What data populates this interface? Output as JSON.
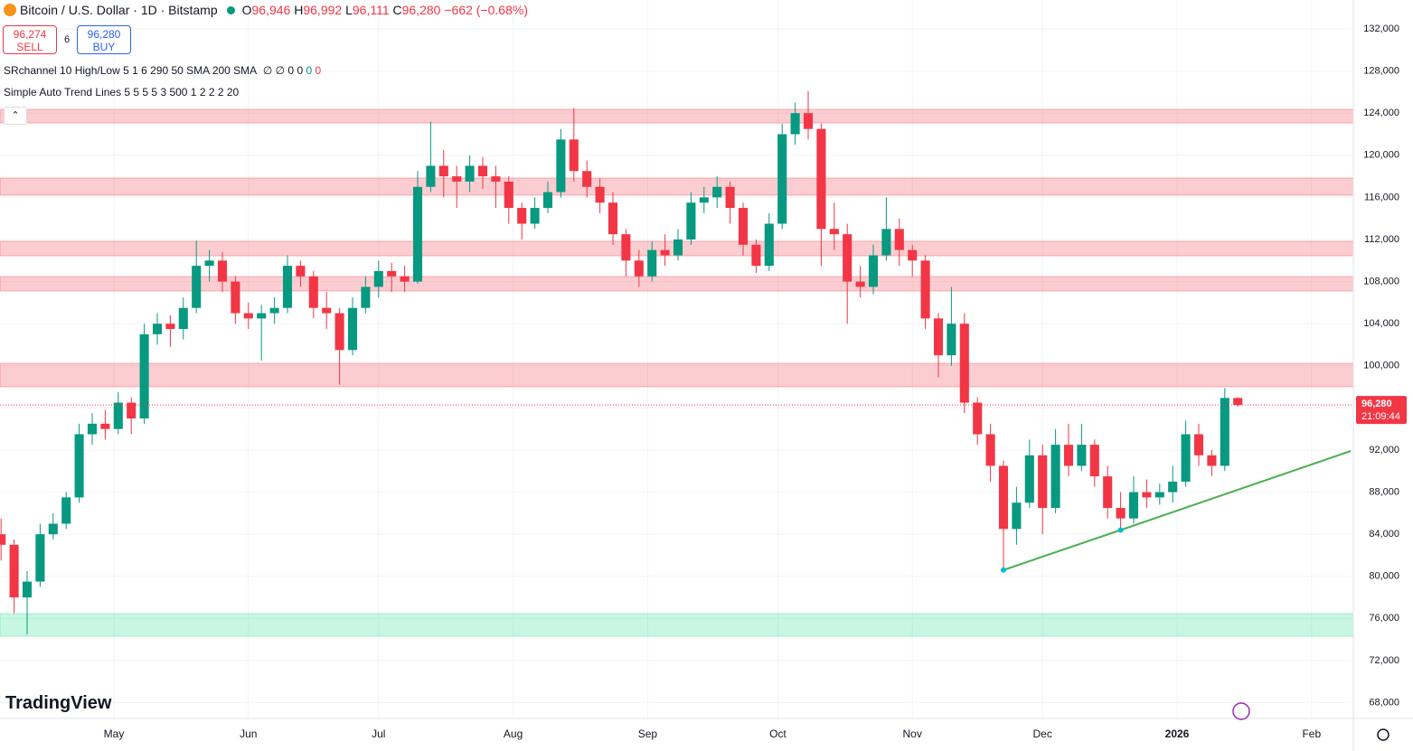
{
  "header": {
    "symbol": "Bitcoin / U.S. Dollar · 1D · Bitstamp",
    "o_label": "O",
    "o": "96,946",
    "h_label": "H",
    "h": "96,992",
    "l_label": "L",
    "l": "96,111",
    "c_label": "C",
    "c": "96,280",
    "change": "−662 (−0.68%)",
    "sell_price": "96,274",
    "sell": "SELL",
    "spread": "6",
    "buy_price": "96,280",
    "buy": "BUY"
  },
  "indicators": [
    {
      "name": "SRchannel 10 High/Low 5 1 6 290 50 SMA 200 SMA",
      "values": "∅ ∅ 0 0",
      "green": "0",
      "red": "0"
    },
    {
      "name": "Simple Auto Trend Lines 5 5 5 5 3 500 1 2 2 2 20"
    }
  ],
  "logo": "TradingView",
  "chart_data": {
    "type": "candlestick",
    "up_color": "#089981",
    "down_color": "#f23645",
    "xlim": [
      -0.25,
      311.625
    ],
    "ylim": [
      66500,
      134750
    ],
    "xticks": [
      {
        "value": 26,
        "label": "May"
      },
      {
        "value": 57,
        "label": "Jun"
      },
      {
        "value": 87,
        "label": "Jul"
      },
      {
        "value": 118,
        "label": "Aug"
      },
      {
        "value": 149,
        "label": "Sep"
      },
      {
        "value": 179,
        "label": "Oct"
      },
      {
        "value": 210,
        "label": "Nov"
      },
      {
        "value": 240,
        "label": "Dec"
      },
      {
        "value": 271,
        "label": "2026"
      },
      {
        "value": 302,
        "label": "Feb"
      }
    ],
    "yticks": [
      {
        "value": 132000,
        "label": "132,000"
      },
      {
        "value": 128000,
        "label": "128,000"
      },
      {
        "value": 124000,
        "label": "124,000"
      },
      {
        "value": 120000,
        "label": "120,000"
      },
      {
        "value": 116000,
        "label": "116,000"
      },
      {
        "value": 112000,
        "label": "112,000"
      },
      {
        "value": 108000,
        "label": "108,000"
      },
      {
        "value": 104000,
        "label": "104,000"
      },
      {
        "value": 100000,
        "label": "100,000"
      },
      {
        "value": 96000,
        "label": "96,000"
      },
      {
        "value": 92000,
        "label": "92,000"
      },
      {
        "value": 88000,
        "label": "88,000"
      },
      {
        "value": 84000,
        "label": "84,000"
      },
      {
        "value": 80000,
        "label": "80,000"
      },
      {
        "value": 76000,
        "label": "76,000"
      },
      {
        "value": 72000,
        "label": "72,000"
      },
      {
        "value": 68000,
        "label": "68,000"
      }
    ],
    "grid": true,
    "x": [
      0,
      3,
      6,
      9,
      12,
      15,
      18,
      21,
      24,
      27,
      30,
      33,
      36,
      39,
      42,
      45,
      48,
      51,
      54,
      57,
      60,
      63,
      66,
      69,
      72,
      75,
      78,
      81,
      84,
      87,
      90,
      93,
      96,
      99,
      102,
      105,
      108,
      111,
      114,
      117,
      120,
      123,
      126,
      129,
      132,
      135,
      138,
      141,
      144,
      147,
      150,
      153,
      156,
      159,
      162,
      165,
      168,
      171,
      174,
      177,
      180,
      183,
      186,
      189,
      192,
      195,
      198,
      201,
      204,
      207,
      210,
      213,
      216,
      219,
      222,
      225,
      228,
      231,
      234,
      237,
      240,
      243,
      246,
      249,
      252,
      255,
      258,
      261,
      264,
      267,
      270,
      273,
      276,
      279,
      282,
      285
    ],
    "open": [
      84000,
      83000,
      78000,
      79500,
      84000,
      85000,
      87500,
      93500,
      94500,
      94000,
      96500,
      95000,
      103000,
      104000,
      103500,
      105500,
      109500,
      110000,
      108000,
      105000,
      104500,
      105000,
      105500,
      109500,
      108500,
      105500,
      105000,
      101500,
      105500,
      107500,
      109000,
      108500,
      108000,
      117000,
      119000,
      118000,
      117500,
      119000,
      118000,
      117500,
      115000,
      113500,
      115000,
      116500,
      121500,
      118500,
      117000,
      115500,
      112500,
      110000,
      108500,
      111000,
      110500,
      112000,
      115500,
      116000,
      117000,
      115000,
      111500,
      109500,
      113500,
      122000,
      124000,
      122500,
      113000,
      112500,
      108000,
      107500,
      110500,
      113000,
      111000,
      110000,
      104500,
      101000,
      104000,
      96500,
      93500,
      90500,
      84500,
      87000,
      91500,
      86500,
      92500,
      90500,
      92500,
      89500,
      86500,
      85500,
      88000,
      87500,
      88000,
      89000,
      93500,
      91500,
      90500,
      96946
    ],
    "high": [
      85500,
      83500,
      80500,
      85000,
      86000,
      88000,
      94500,
      95500,
      95800,
      97500,
      97000,
      104000,
      105000,
      104800,
      106500,
      111900,
      111000,
      110800,
      108500,
      106000,
      105800,
      106500,
      110500,
      110000,
      109000,
      107000,
      105500,
      106500,
      108500,
      110000,
      109800,
      109500,
      118500,
      123200,
      120500,
      119000,
      120000,
      119800,
      119000,
      118000,
      115500,
      116000,
      117500,
      122500,
      124500,
      119500,
      117800,
      116500,
      113000,
      111000,
      111800,
      112500,
      113000,
      116500,
      117000,
      118000,
      117500,
      115500,
      112000,
      114500,
      123000,
      125000,
      126100,
      123000,
      115500,
      113500,
      109500,
      111500,
      116000,
      114000,
      111500,
      110500,
      105000,
      107500,
      105000,
      97000,
      94500,
      91000,
      88500,
      93000,
      92500,
      94000,
      94500,
      94500,
      93000,
      90500,
      88000,
      89500,
      89200,
      88800,
      90500,
      94800,
      94500,
      92000,
      97900,
      96992
    ],
    "low": [
      81500,
      76500,
      74500,
      79000,
      83500,
      84500,
      87000,
      92500,
      93000,
      93500,
      93500,
      94500,
      102000,
      101800,
      102500,
      105000,
      108000,
      107000,
      104000,
      103500,
      100500,
      104000,
      105000,
      107500,
      104500,
      103500,
      98200,
      101000,
      105000,
      106500,
      107000,
      107000,
      107800,
      116500,
      116000,
      115000,
      116500,
      116800,
      115000,
      113500,
      112000,
      113000,
      114500,
      116000,
      117500,
      116000,
      114500,
      111500,
      108500,
      107500,
      108000,
      109500,
      110000,
      111500,
      114500,
      115000,
      113500,
      110500,
      108800,
      109000,
      113000,
      121000,
      121500,
      109500,
      111000,
      104000,
      106500,
      106800,
      110000,
      109500,
      108500,
      103500,
      98900,
      100000,
      95500,
      92500,
      89000,
      80600,
      83000,
      86500,
      84000,
      86000,
      89500,
      90000,
      88500,
      85500,
      84400,
      85000,
      86500,
      86800,
      87000,
      88500,
      90500,
      89500,
      90000,
      96111
    ],
    "close": [
      83000,
      78000,
      79500,
      84000,
      85000,
      87500,
      93500,
      94500,
      94000,
      96500,
      95000,
      103000,
      104000,
      103500,
      105500,
      109500,
      110000,
      108000,
      105000,
      104500,
      105000,
      105500,
      109500,
      108500,
      105500,
      105000,
      101500,
      105500,
      107500,
      109000,
      108500,
      108000,
      117000,
      119000,
      118000,
      117500,
      119000,
      118000,
      117500,
      115000,
      113500,
      115000,
      116500,
      121500,
      118500,
      117000,
      115500,
      112500,
      110000,
      108500,
      111000,
      110500,
      112000,
      115500,
      116000,
      117000,
      115000,
      111500,
      109500,
      113500,
      122000,
      124000,
      122500,
      113000,
      112500,
      108000,
      107500,
      110500,
      113000,
      111000,
      110000,
      104500,
      101000,
      104000,
      96500,
      93500,
      90500,
      84500,
      87000,
      91500,
      86500,
      92500,
      90500,
      92500,
      89500,
      86500,
      85500,
      88000,
      87500,
      88000,
      89000,
      93500,
      91500,
      90500,
      96946,
      96280
    ],
    "zones": [
      {
        "low": 123070,
        "high": 124360,
        "color": "#f23645"
      },
      {
        "low": 116210,
        "high": 117840,
        "color": "#f23645"
      },
      {
        "low": 110450,
        "high": 111830,
        "color": "#f23645"
      },
      {
        "low": 107110,
        "high": 108480,
        "color": "#f23645"
      },
      {
        "low": 98010,
        "high": 100240,
        "color": "#f23645"
      },
      {
        "low": 74310,
        "high": 76460,
        "color": "#1fe08a"
      }
    ],
    "trendline": {
      "color": "#4caf50",
      "x": [
        231,
        258,
        311
      ],
      "values": [
        80600,
        84400,
        91900
      ]
    },
    "last_price": {
      "value": 96280,
      "label": "96,280",
      "countdown": "21:09:44",
      "color": "#f23645"
    }
  }
}
